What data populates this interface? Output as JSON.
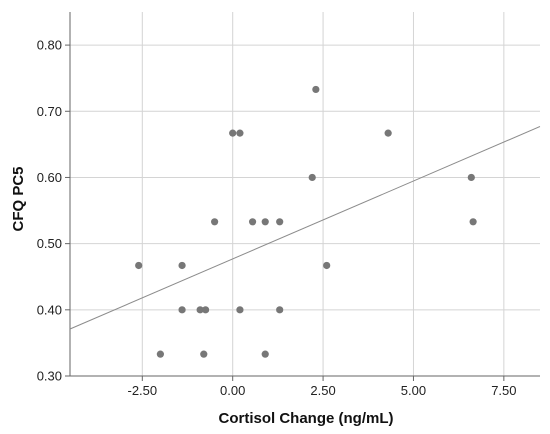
{
  "chart_data": {
    "type": "scatter",
    "title": "",
    "xlabel": "Cortisol Change (ng/mL)",
    "ylabel": "CFQ PC5",
    "xlim": [
      -4.5,
      8.5
    ],
    "ylim": [
      0.3,
      0.85
    ],
    "x_ticks": [
      -2.5,
      0.0,
      2.5,
      5.0,
      7.5
    ],
    "x_tick_labels": [
      "-2.50",
      "0.00",
      "2.50",
      "5.00",
      "7.50"
    ],
    "y_ticks": [
      0.3,
      0.4,
      0.5,
      0.6,
      0.7,
      0.8
    ],
    "y_tick_labels": [
      "0.30",
      "0.40",
      "0.50",
      "0.60",
      "0.70",
      "0.80"
    ],
    "grid": true,
    "legend": "none",
    "point_color": "#777777",
    "fit_line_color": "#8c8c8c",
    "points": [
      {
        "x": -2.6,
        "y": 0.467
      },
      {
        "x": -2.0,
        "y": 0.333
      },
      {
        "x": -1.4,
        "y": 0.467
      },
      {
        "x": -1.4,
        "y": 0.4
      },
      {
        "x": -0.9,
        "y": 0.4
      },
      {
        "x": -0.75,
        "y": 0.4
      },
      {
        "x": -0.8,
        "y": 0.333
      },
      {
        "x": -0.5,
        "y": 0.533
      },
      {
        "x": 0.0,
        "y": 0.667
      },
      {
        "x": 0.2,
        "y": 0.667
      },
      {
        "x": 0.2,
        "y": 0.4
      },
      {
        "x": 0.55,
        "y": 0.533
      },
      {
        "x": 0.9,
        "y": 0.533
      },
      {
        "x": 0.9,
        "y": 0.333
      },
      {
        "x": 1.3,
        "y": 0.533
      },
      {
        "x": 1.3,
        "y": 0.4
      },
      {
        "x": 2.2,
        "y": 0.6
      },
      {
        "x": 2.3,
        "y": 0.733
      },
      {
        "x": 2.6,
        "y": 0.467
      },
      {
        "x": 4.3,
        "y": 0.667
      },
      {
        "x": 6.6,
        "y": 0.6
      },
      {
        "x": 6.65,
        "y": 0.533
      }
    ],
    "fit_line": [
      {
        "x": -4.5,
        "y": 0.371
      },
      {
        "x": 8.5,
        "y": 0.677
      }
    ]
  }
}
